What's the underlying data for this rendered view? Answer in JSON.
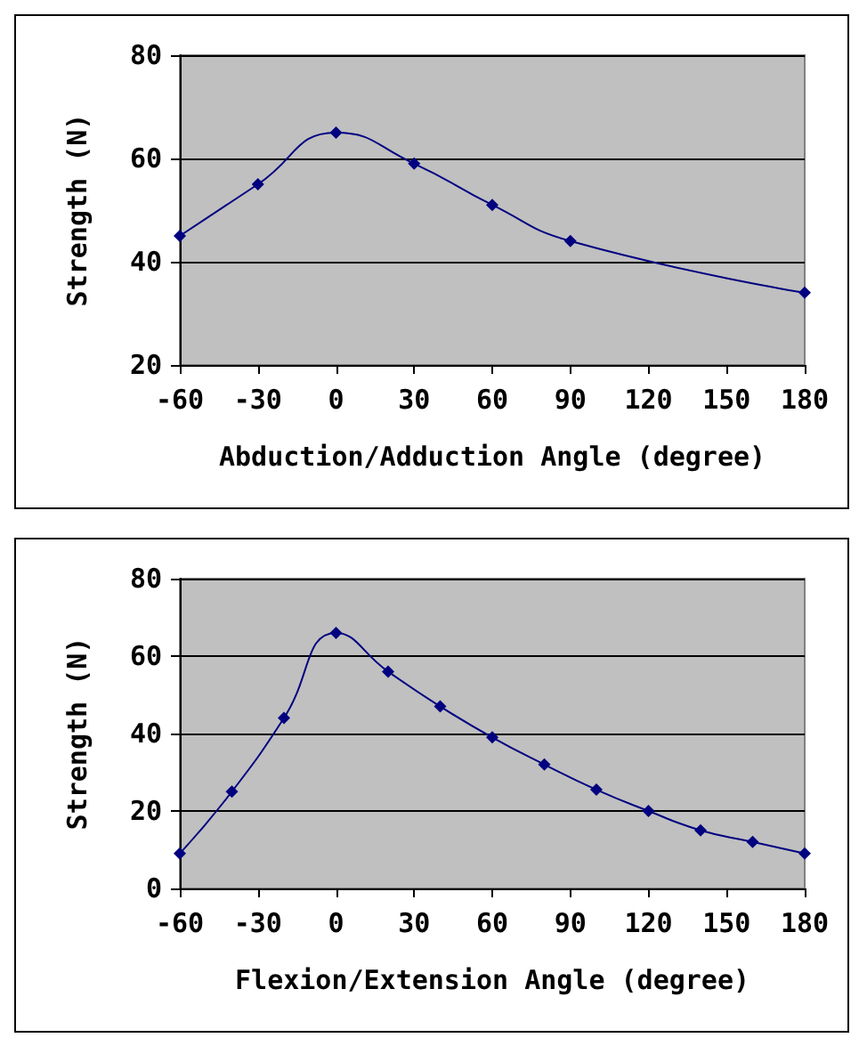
{
  "chart_data": [
    {
      "type": "line",
      "xlabel": "Abduction/Adduction Angle (degree)",
      "ylabel": "Strength (N)",
      "x": [
        -60,
        -30,
        0,
        30,
        60,
        90,
        180
      ],
      "series": [
        {
          "color": "#000080",
          "values": [
            45,
            55,
            65,
            59,
            51,
            44,
            34
          ]
        }
      ],
      "xlim": [
        -60,
        180
      ],
      "xticks": [
        -60,
        -30,
        0,
        30,
        60,
        90,
        120,
        150,
        180
      ],
      "ylim": [
        20,
        80
      ],
      "yticks": [
        20,
        40,
        60,
        80
      ],
      "grid": "y",
      "marker": "diamond"
    },
    {
      "type": "line",
      "xlabel": "Flexion/Extension Angle (degree)",
      "ylabel": "Strength (N)",
      "x": [
        -60,
        -40,
        -20,
        0,
        20,
        40,
        60,
        80,
        100,
        120,
        140,
        160,
        180
      ],
      "series": [
        {
          "color": "#000080",
          "values": [
            9,
            25,
            44,
            66,
            56,
            47,
            39,
            32,
            25.5,
            20,
            15,
            12,
            9
          ]
        }
      ],
      "xlim": [
        -60,
        180
      ],
      "xticks": [
        -60,
        -30,
        0,
        30,
        60,
        90,
        120,
        150,
        180
      ],
      "ylim": [
        0,
        80
      ],
      "yticks": [
        0,
        20,
        40,
        60,
        80
      ],
      "grid": "y",
      "marker": "diamond"
    }
  ]
}
